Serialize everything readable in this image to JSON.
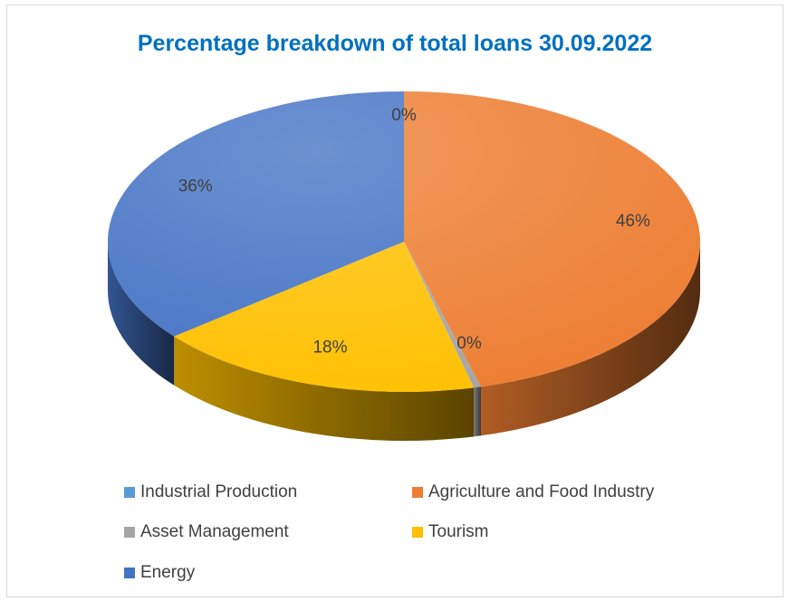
{
  "colors": {
    "industrial": "#5b9bd5",
    "agriculture": "#ed7d31",
    "asset": "#a5a5a5",
    "tourism": "#ffc000",
    "energy": "#4472c4",
    "title": "#0070c0",
    "text": "#404040"
  },
  "chart_data": {
    "type": "pie",
    "variant": "3d",
    "title": "Percentage breakdown of total loans 30.09.2022",
    "legend_position": "bottom",
    "slices": [
      {
        "label": "Industrial Production",
        "value": 0,
        "display": "0%",
        "color": "#5b9bd5"
      },
      {
        "label": "Agriculture and Food Industry",
        "value": 46,
        "display": "46%",
        "color": "#ed7d31"
      },
      {
        "label": "Asset Management",
        "value": 0.4,
        "display": "0%",
        "color": "#a5a5a5"
      },
      {
        "label": "Tourism",
        "value": 18,
        "display": "18%",
        "color": "#ffc000"
      },
      {
        "label": "Energy",
        "value": 36,
        "display": "36%",
        "color": "#4472c4"
      }
    ]
  }
}
